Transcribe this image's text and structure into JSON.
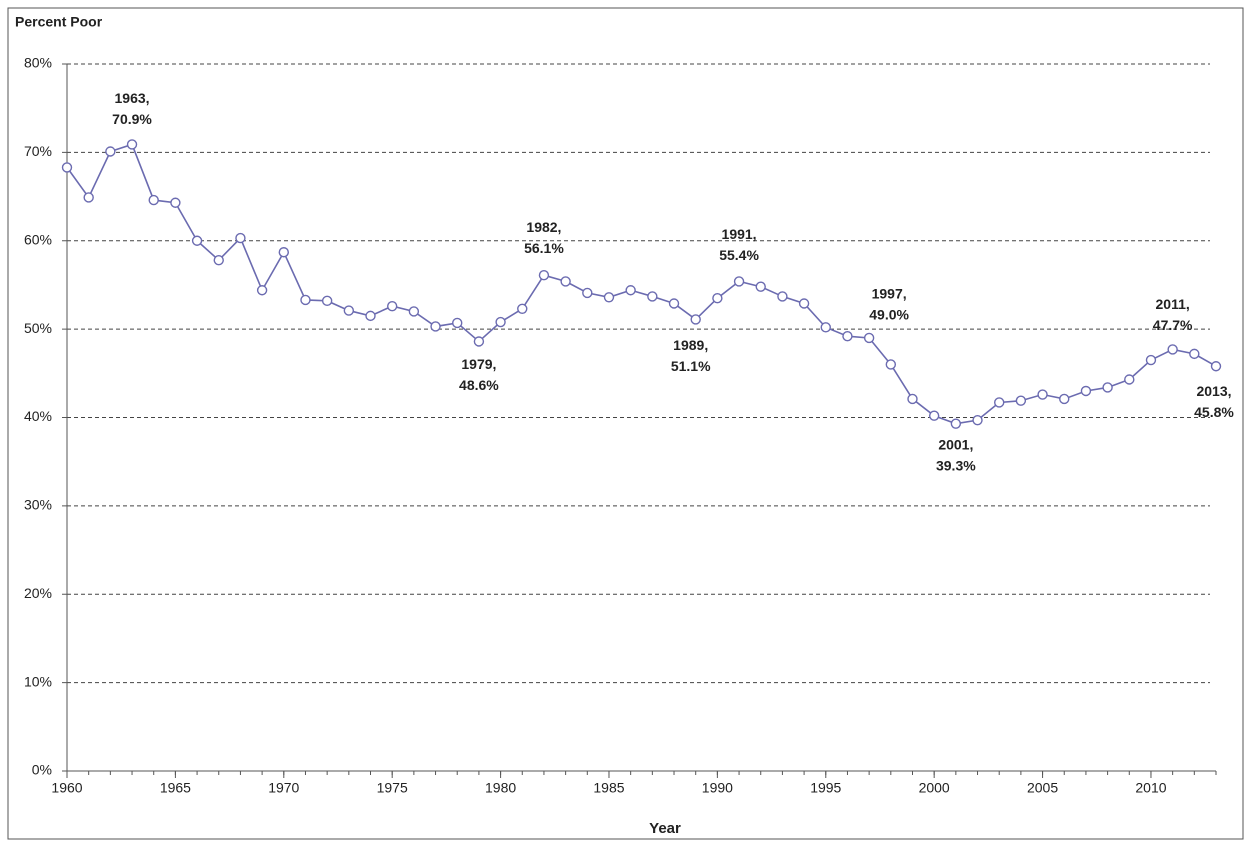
{
  "chart_data": {
    "type": "line",
    "y_label": "Percent Poor",
    "x_label": "Year",
    "x": [
      1960,
      1961,
      1962,
      1963,
      1964,
      1965,
      1966,
      1967,
      1968,
      1969,
      1970,
      1971,
      1972,
      1973,
      1974,
      1975,
      1976,
      1977,
      1978,
      1979,
      1980,
      1981,
      1982,
      1983,
      1984,
      1985,
      1986,
      1987,
      1988,
      1989,
      1990,
      1991,
      1992,
      1993,
      1994,
      1995,
      1996,
      1997,
      1998,
      1999,
      2000,
      2001,
      2002,
      2003,
      2004,
      2005,
      2006,
      2007,
      2008,
      2009,
      2010,
      2011,
      2012,
      2013
    ],
    "values": [
      68.3,
      64.9,
      70.1,
      70.9,
      64.6,
      64.3,
      60.0,
      57.8,
      60.3,
      54.4,
      58.7,
      53.3,
      53.2,
      52.1,
      51.5,
      52.6,
      52.0,
      50.3,
      50.7,
      48.6,
      50.8,
      52.3,
      56.1,
      55.4,
      54.1,
      53.6,
      54.4,
      53.7,
      52.9,
      51.1,
      53.5,
      55.4,
      54.8,
      53.7,
      52.9,
      50.2,
      49.2,
      49.0,
      46.0,
      42.1,
      40.2,
      39.3,
      39.7,
      41.7,
      41.9,
      42.6,
      42.1,
      43.0,
      43.4,
      44.3,
      46.5,
      47.7,
      47.2,
      45.8
    ],
    "color": "#6b6bb0",
    "xlim": [
      1960,
      2013
    ],
    "xticks": [
      1960,
      1965,
      1970,
      1975,
      1980,
      1985,
      1990,
      1995,
      2000,
      2005,
      2010
    ],
    "ylim": [
      0,
      80
    ],
    "yticks": [
      {
        "value": 0,
        "label": "0%"
      },
      {
        "value": 10,
        "label": "10%"
      },
      {
        "value": 20,
        "label": "20%"
      },
      {
        "value": 30,
        "label": "30%"
      },
      {
        "value": 40,
        "label": "40%"
      },
      {
        "value": 50,
        "label": "50%"
      },
      {
        "value": 60,
        "label": "60%"
      },
      {
        "value": 70,
        "label": "70%"
      },
      {
        "value": 80,
        "label": "80%"
      }
    ],
    "grid": true,
    "annotations": [
      {
        "x": 1963,
        "y": 70.9,
        "label": [
          "1963,",
          "70.9%"
        ]
      },
      {
        "x": 1979,
        "y": 48.6,
        "label": [
          "1979,",
          "48.6%"
        ]
      },
      {
        "x": 1982,
        "y": 56.1,
        "label": [
          "1982,",
          "56.1%"
        ]
      },
      {
        "x": 1989,
        "y": 51.1,
        "label": [
          "1989,",
          "51.1%"
        ]
      },
      {
        "x": 1991,
        "y": 55.4,
        "label": [
          "1991,",
          "55.4%"
        ]
      },
      {
        "x": 1997,
        "y": 49.0,
        "label": [
          "1997,",
          "49.0%"
        ]
      },
      {
        "x": 2001,
        "y": 39.3,
        "label": [
          "2001,",
          "39.3%"
        ]
      },
      {
        "x": 2011,
        "y": 47.7,
        "label": [
          "2011,",
          "47.7%"
        ]
      },
      {
        "x": 2013,
        "y": 45.8,
        "label": [
          "2013,",
          "45.8%"
        ]
      }
    ]
  }
}
